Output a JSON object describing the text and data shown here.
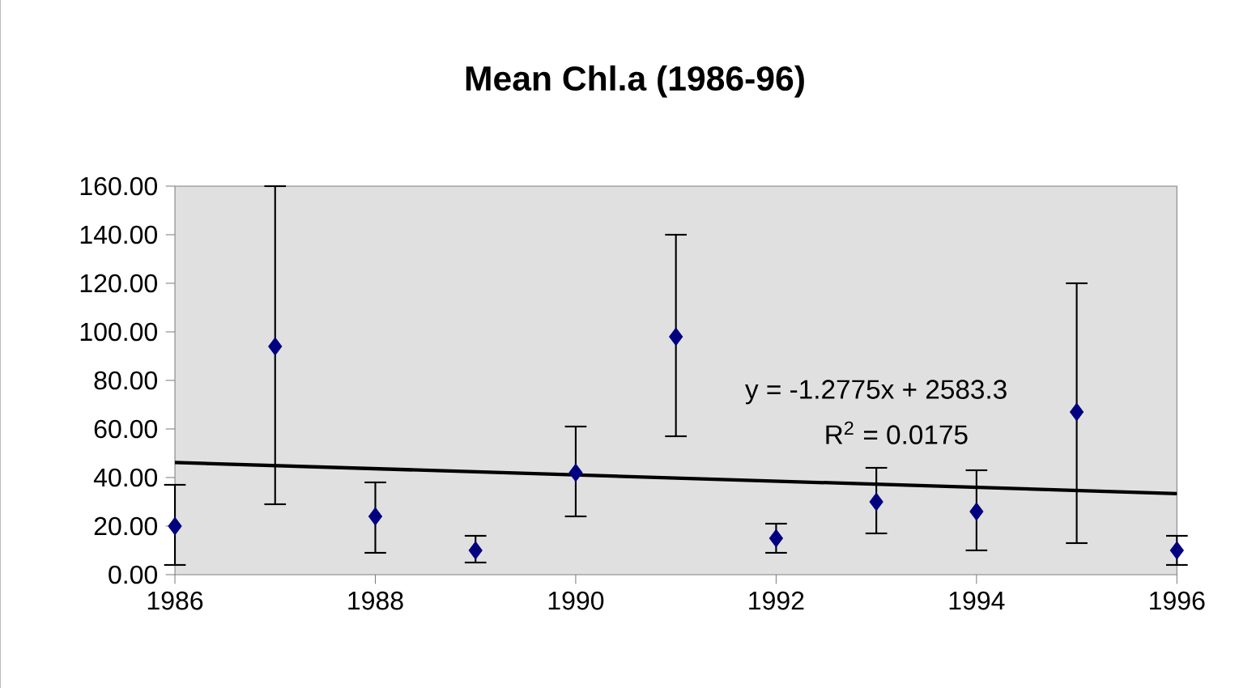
{
  "chart_data": {
    "type": "scatter",
    "title": "**Mean Chl.a (1986-96)**",
    "x": [
      1986,
      1987,
      1988,
      1989,
      1990,
      1991,
      1992,
      1993,
      1994,
      1995,
      1996
    ],
    "series": [
      {
        "color": "#000080",
        "values": [
          20,
          94,
          24,
          10,
          42,
          98,
          15,
          30,
          26,
          67,
          10
        ],
        "errors": [
          [
            4,
            37
          ],
          [
            29,
            160
          ],
          [
            9,
            38
          ],
          [
            5,
            16
          ],
          [
            24,
            61
          ],
          [
            57,
            140
          ],
          [
            9,
            21
          ],
          [
            17,
            44
          ],
          [
            10,
            43
          ],
          [
            13,
            120
          ],
          [
            4,
            16
          ]
        ]
      },
      {
        "type": "line",
        "color": "#000000",
        "x": [
          1986,
          1996
        ],
        "values": [
          46.2,
          33.4
        ],
        "marker": "none"
      }
    ],
    "marker": "diamond",
    "grid": false,
    "annotations": [
      "y = -1.2775x + 2583.3",
      "R$^{2}$ = 0.0175"
    ],
    "xlim": [
      1986,
      1996
    ],
    "xticks": [
      1986,
      1988,
      1990,
      1992,
      1994,
      1996
    ],
    "ylim": [
      0,
      160
    ],
    "yticks": [
      {
        "value": 0,
        "label": "0.00"
      },
      {
        "value": 20,
        "label": "20.00"
      },
      {
        "value": 40,
        "label": "40.00"
      },
      {
        "value": 60,
        "label": "60.00"
      },
      {
        "value": 80,
        "label": "80.00"
      },
      {
        "value": 100,
        "label": "100.00"
      },
      {
        "value": 120,
        "label": "120.00"
      },
      {
        "value": 140,
        "label": "140.00"
      },
      {
        "value": 160,
        "label": "160.00"
      }
    ]
  }
}
